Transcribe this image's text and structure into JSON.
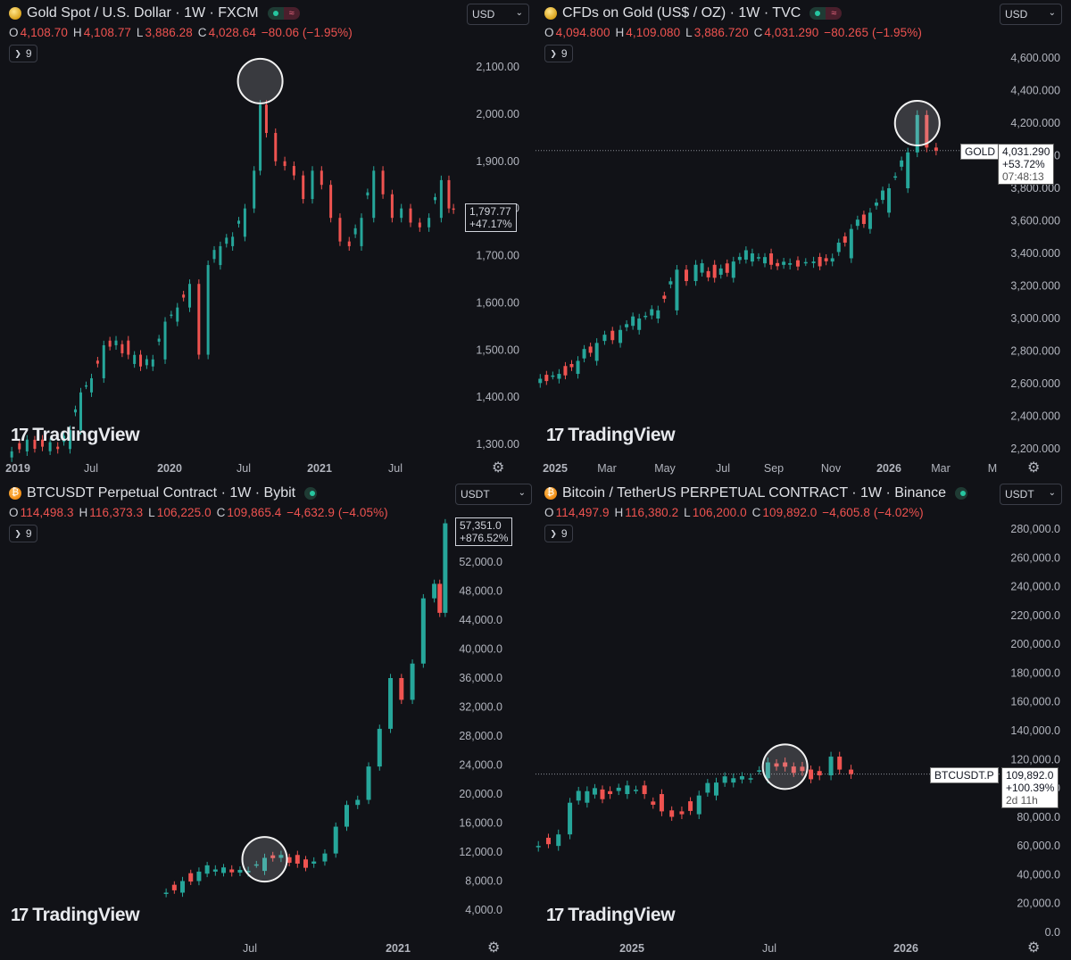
{
  "panels": [
    {
      "id": "gold-fxcm",
      "title": "Gold Spot / U.S. Dollar · 1W · FXCM",
      "icon": "gold-coin-icon",
      "ohlc": {
        "o": "4,108.70",
        "h": "4,108.77",
        "l": "3,886.28",
        "c": "4,028.64",
        "chg": "−80.06 (−1.95%)"
      },
      "indicators": "9",
      "currency": "USD",
      "price_labels": [
        "1,797.77",
        "+47.17%"
      ],
      "y_ticks": [
        "2,100.00",
        "2,000.00",
        "1,900.00",
        "1,800.00",
        "1,700.00",
        "1,600.00",
        "1,500.00",
        "1,400.00",
        "1,300.00"
      ],
      "x_ticks": [
        "2019",
        "Jul",
        "2020",
        "Jul",
        "2021",
        "Jul"
      ]
    },
    {
      "id": "gold-tvc",
      "title": "CFDs on Gold (US$ / OZ) · 1W · TVC",
      "icon": "gold-coin-icon",
      "ohlc": {
        "o": "4,094.800",
        "h": "4,109.080",
        "l": "3,886.720",
        "c": "4,031.290",
        "chg": "−80.265 (−1.95%)"
      },
      "indicators": "9",
      "currency": "USD",
      "symbol_tag": "GOLD",
      "price_labels": [
        "4,031.290",
        "+53.72%",
        "07:48:13"
      ],
      "y_ticks": [
        "4,600.000",
        "4,400.000",
        "4,200.000",
        "4,000.000",
        "3,800.000",
        "3,600.000",
        "3,400.000",
        "3,200.000",
        "3,000.000",
        "2,800.000",
        "2,600.000",
        "2,400.000",
        "2,200.000"
      ],
      "x_ticks": [
        "2025",
        "Mar",
        "May",
        "Jul",
        "Sep",
        "Nov",
        "2026",
        "Mar",
        "M"
      ]
    },
    {
      "id": "btc-bybit",
      "title": "BTCUSDT Perpetual Contract · 1W · Bybit",
      "icon": "bitcoin-icon",
      "ohlc": {
        "o": "114,498.3",
        "h": "116,373.3",
        "l": "106,225.0",
        "c": "109,865.4",
        "chg": "−4,632.9 (−4.05%)"
      },
      "indicators": "9",
      "currency": "USDT",
      "price_labels": [
        "57,351.0",
        "+876.52%"
      ],
      "y_ticks": [
        "52,000.0",
        "48,000.0",
        "44,000.0",
        "40,000.0",
        "36,000.0",
        "32,000.0",
        "28,000.0",
        "24,000.0",
        "20,000.0",
        "16,000.0",
        "12,000.0",
        "8,000.0",
        "4,000.0"
      ],
      "x_ticks": [
        "Jul",
        "2021"
      ]
    },
    {
      "id": "btc-binance",
      "title": "Bitcoin / TetherUS PERPETUAL CONTRACT · 1W · Binance",
      "icon": "bitcoin-icon",
      "ohlc": {
        "o": "114,497.9",
        "h": "116,380.2",
        "l": "106,200.0",
        "c": "109,892.0",
        "chg": "−4,605.8 (−4.02%)"
      },
      "indicators": "9",
      "currency": "USDT",
      "symbol_tag": "BTCUSDT.P",
      "price_labels": [
        "109,892.0",
        "+100.39%",
        "2d 11h"
      ],
      "y_ticks": [
        "280,000.0",
        "260,000.0",
        "240,000.0",
        "220,000.0",
        "200,000.0",
        "180,000.0",
        "160,000.0",
        "140,000.0",
        "120,000.0",
        "100,000.0",
        "80,000.0",
        "60,000.0",
        "40,000.0",
        "20,000.0",
        "0.0"
      ],
      "x_ticks": [
        "2025",
        "Jul",
        "2026"
      ]
    }
  ],
  "brand": "TradingView",
  "colors": {
    "up": "#26a69a",
    "down": "#ef5350",
    "axis_text": "#b2b5be",
    "background": "#111217"
  },
  "chart_data": [
    {
      "type": "candlestick",
      "panel": "gold-fxcm",
      "ylim": [
        1260,
        2120
      ],
      "highlight_close": 2070,
      "points": [
        {
          "t": 2019.0,
          "c": 1285
        },
        {
          "t": 2019.1,
          "c": 1310
        },
        {
          "t": 2019.2,
          "c": 1295
        },
        {
          "t": 2019.3,
          "c": 1290
        },
        {
          "t": 2019.38,
          "c": 1330
        },
        {
          "t": 2019.45,
          "c": 1410
        },
        {
          "t": 2019.52,
          "c": 1440
        },
        {
          "t": 2019.6,
          "c": 1510
        },
        {
          "t": 2019.68,
          "c": 1520
        },
        {
          "t": 2019.76,
          "c": 1490
        },
        {
          "t": 2019.84,
          "c": 1465
        },
        {
          "t": 2019.92,
          "c": 1480
        },
        {
          "t": 2020.0,
          "c": 1560
        },
        {
          "t": 2020.08,
          "c": 1590
        },
        {
          "t": 2020.16,
          "c": 1640
        },
        {
          "t": 2020.22,
          "c": 1490
        },
        {
          "t": 2020.28,
          "c": 1680
        },
        {
          "t": 2020.36,
          "c": 1720
        },
        {
          "t": 2020.44,
          "c": 1740
        },
        {
          "t": 2020.52,
          "c": 1800
        },
        {
          "t": 2020.58,
          "c": 1880
        },
        {
          "t": 2020.62,
          "c": 2020
        },
        {
          "t": 2020.66,
          "c": 1960
        },
        {
          "t": 2020.72,
          "c": 1900
        },
        {
          "t": 2020.78,
          "c": 1890
        },
        {
          "t": 2020.84,
          "c": 1870
        },
        {
          "t": 2020.9,
          "c": 1820
        },
        {
          "t": 2020.96,
          "c": 1880
        },
        {
          "t": 2021.02,
          "c": 1850
        },
        {
          "t": 2021.08,
          "c": 1780
        },
        {
          "t": 2021.14,
          "c": 1730
        },
        {
          "t": 2021.2,
          "c": 1720
        },
        {
          "t": 2021.28,
          "c": 1780
        },
        {
          "t": 2021.36,
          "c": 1880
        },
        {
          "t": 2021.42,
          "c": 1830
        },
        {
          "t": 2021.48,
          "c": 1780
        },
        {
          "t": 2021.54,
          "c": 1800
        },
        {
          "t": 2021.6,
          "c": 1770
        },
        {
          "t": 2021.66,
          "c": 1760
        },
        {
          "t": 2021.72,
          "c": 1780
        },
        {
          "t": 2021.8,
          "c": 1860
        },
        {
          "t": 2021.85,
          "c": 1800
        },
        {
          "t": 2021.88,
          "c": 1798
        }
      ]
    },
    {
      "type": "candlestick",
      "panel": "gold-tvc",
      "ylim": [
        2150,
        4700
      ],
      "highlight_close": 4200,
      "last_close": 4031.29,
      "points": [
        {
          "t": 2025.0,
          "c": 2630
        },
        {
          "t": 2025.04,
          "c": 2660
        },
        {
          "t": 2025.08,
          "c": 2740
        },
        {
          "t": 2025.12,
          "c": 2850
        },
        {
          "t": 2025.17,
          "c": 2930
        },
        {
          "t": 2025.21,
          "c": 3000
        },
        {
          "t": 2025.25,
          "c": 3050
        },
        {
          "t": 2025.29,
          "c": 3300
        },
        {
          "t": 2025.31,
          "c": 3230
        },
        {
          "t": 2025.33,
          "c": 3330
        },
        {
          "t": 2025.37,
          "c": 3250
        },
        {
          "t": 2025.41,
          "c": 3350
        },
        {
          "t": 2025.45,
          "c": 3400
        },
        {
          "t": 2025.49,
          "c": 3330
        },
        {
          "t": 2025.53,
          "c": 3340
        },
        {
          "t": 2025.58,
          "c": 3350
        },
        {
          "t": 2025.62,
          "c": 3370
        },
        {
          "t": 2025.66,
          "c": 3550
        },
        {
          "t": 2025.7,
          "c": 3650
        },
        {
          "t": 2025.74,
          "c": 3800
        },
        {
          "t": 2025.78,
          "c": 4020
        },
        {
          "t": 2025.8,
          "c": 4250
        },
        {
          "t": 2025.82,
          "c": 4050
        },
        {
          "t": 2025.84,
          "c": 4031
        }
      ]
    },
    {
      "type": "candlestick",
      "panel": "btc-bybit",
      "ylim": [
        2000,
        56000
      ],
      "highlight_close": 11000,
      "last_close": 57351.0,
      "points": [
        {
          "t": 2020.3,
          "c": 6400
        },
        {
          "t": 2020.36,
          "c": 8000
        },
        {
          "t": 2020.42,
          "c": 9300
        },
        {
          "t": 2020.48,
          "c": 9600
        },
        {
          "t": 2020.54,
          "c": 9200
        },
        {
          "t": 2020.6,
          "c": 9400
        },
        {
          "t": 2020.66,
          "c": 11200
        },
        {
          "t": 2020.72,
          "c": 11600
        },
        {
          "t": 2020.78,
          "c": 10400
        },
        {
          "t": 2020.84,
          "c": 10700
        },
        {
          "t": 2020.88,
          "c": 11800
        },
        {
          "t": 2020.92,
          "c": 15500
        },
        {
          "t": 2020.96,
          "c": 18500
        },
        {
          "t": 2021.0,
          "c": 19200
        },
        {
          "t": 2021.04,
          "c": 23800
        },
        {
          "t": 2021.08,
          "c": 29000
        },
        {
          "t": 2021.12,
          "c": 36000
        },
        {
          "t": 2021.16,
          "c": 33000
        },
        {
          "t": 2021.2,
          "c": 38000
        },
        {
          "t": 2021.24,
          "c": 47000
        },
        {
          "t": 2021.28,
          "c": 49000
        },
        {
          "t": 2021.3,
          "c": 45000
        },
        {
          "t": 2021.32,
          "c": 57351
        }
      ]
    },
    {
      "type": "candlestick",
      "panel": "btc-binance",
      "ylim": [
        0,
        290000
      ],
      "highlight_close": 115000,
      "last_close": 109892.0,
      "points": [
        {
          "t": 2024.75,
          "c": 60000
        },
        {
          "t": 2024.82,
          "c": 68000
        },
        {
          "t": 2024.86,
          "c": 90000
        },
        {
          "t": 2024.92,
          "c": 98000
        },
        {
          "t": 2025.0,
          "c": 96000
        },
        {
          "t": 2025.06,
          "c": 102000
        },
        {
          "t": 2025.12,
          "c": 96000
        },
        {
          "t": 2025.18,
          "c": 84000
        },
        {
          "t": 2025.25,
          "c": 82000
        },
        {
          "t": 2025.31,
          "c": 95000
        },
        {
          "t": 2025.37,
          "c": 104000
        },
        {
          "t": 2025.43,
          "c": 107000
        },
        {
          "t": 2025.49,
          "c": 107000
        },
        {
          "t": 2025.55,
          "c": 118000
        },
        {
          "t": 2025.61,
          "c": 115000
        },
        {
          "t": 2025.67,
          "c": 112000
        },
        {
          "t": 2025.73,
          "c": 109000
        },
        {
          "t": 2025.77,
          "c": 122000
        },
        {
          "t": 2025.8,
          "c": 113000
        },
        {
          "t": 2025.84,
          "c": 109892
        }
      ]
    }
  ]
}
